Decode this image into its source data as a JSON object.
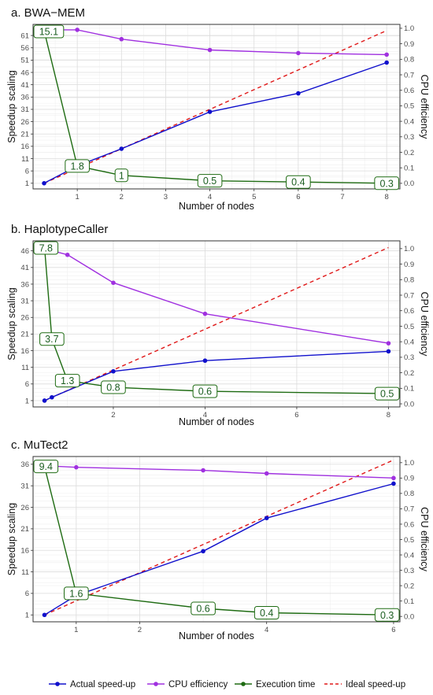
{
  "legend": [
    {
      "label": "Actual speed-up",
      "color": "#1010cc",
      "style": "line-point"
    },
    {
      "label": "CPU efficiency",
      "color": "#a030e0",
      "style": "line-point"
    },
    {
      "label": "Execution time",
      "color": "#1e6b12",
      "style": "line-point"
    },
    {
      "label": "Ideal speed-up",
      "color": "#e01818",
      "style": "dashed"
    }
  ],
  "colors": {
    "speedup": "#1010cc",
    "efficiency": "#a030e0",
    "time": "#1e6b12",
    "ideal": "#e01818",
    "grid_major": "#dcdcdc",
    "grid_minor": "#efefef",
    "label_box_fill": "#ffffff",
    "label_box_border": "#1e6b12"
  },
  "chart_data": [
    {
      "type": "line",
      "title": "a. BWA−MEM",
      "xlabel": "Number of nodes",
      "ylabel": "Speedup scaling",
      "y2label": "CPU efficiency",
      "xlim": [
        0,
        8.3
      ],
      "ylim": [
        -1.3,
        65.5
      ],
      "y2lim": [
        -0.036,
        1.025
      ],
      "x_ticks": [
        1,
        2,
        3,
        4,
        5,
        6,
        7,
        8
      ],
      "y_ticks": [
        1,
        6,
        11,
        16,
        21,
        26,
        31,
        36,
        41,
        46,
        51,
        56,
        61
      ],
      "y2_ticks": [
        0.0,
        0.1,
        0.2,
        0.3,
        0.4,
        0.5,
        0.6,
        0.7,
        0.8,
        0.9,
        1.0
      ],
      "grid": true,
      "series": [
        {
          "name": "Actual speed-up",
          "key": "speedup",
          "axis": "left",
          "x": [
            0.25,
            1,
            2,
            4,
            6,
            8
          ],
          "y": [
            1,
            8,
            15,
            30,
            37.5,
            50
          ]
        },
        {
          "name": "CPU efficiency",
          "key": "efficiency",
          "axis": "right",
          "x": [
            0.25,
            1,
            2,
            4,
            6,
            8
          ],
          "y": [
            0.99,
            0.99,
            0.93,
            0.86,
            0.84,
            0.83
          ]
        },
        {
          "name": "Execution time",
          "key": "time",
          "axis": "left",
          "x": [
            0.25,
            1,
            2,
            4,
            6,
            8
          ],
          "y": [
            63,
            8,
            4.2,
            2,
            1.5,
            1
          ],
          "labels": [
            "15.1",
            "1.8",
            "1",
            "0.5",
            "0.4",
            "0.3"
          ]
        },
        {
          "name": "Ideal speed-up",
          "key": "ideal",
          "axis": "left",
          "x": [
            0.25,
            8
          ],
          "y": [
            1,
            63
          ]
        }
      ]
    },
    {
      "type": "line",
      "title": "b. HaplotypeCaller",
      "xlabel": "Number of nodes",
      "ylabel": "Speedup scaling",
      "y2label": "CPU efficiency",
      "xlim": [
        0.25,
        8.25
      ],
      "ylim": [
        -0.9,
        49
      ],
      "y2lim": [
        -0.02,
        1.05
      ],
      "x_ticks": [
        2,
        4,
        6,
        8
      ],
      "y_ticks": [
        1,
        6,
        11,
        16,
        21,
        26,
        31,
        36,
        41,
        46
      ],
      "y2_ticks": [
        0.0,
        0.1,
        0.2,
        0.3,
        0.4,
        0.5,
        0.6,
        0.7,
        0.8,
        0.9,
        1.0
      ],
      "grid": true,
      "series": [
        {
          "name": "Actual speed-up",
          "key": "speedup",
          "axis": "left",
          "x": [
            0.5,
            0.66,
            2,
            4,
            8
          ],
          "y": [
            1,
            2,
            9.8,
            13,
            15.8
          ]
        },
        {
          "name": "CPU efficiency",
          "key": "efficiency",
          "axis": "right",
          "x": [
            0.5,
            1,
            2,
            4,
            8
          ],
          "y": [
            1.0,
            0.96,
            0.78,
            0.58,
            0.39
          ]
        },
        {
          "name": "Execution time",
          "key": "time",
          "axis": "left",
          "x": [
            0.5,
            0.66,
            1,
            2,
            4,
            8
          ],
          "y": [
            47,
            19.5,
            7,
            5,
            3.8,
            3.1
          ],
          "labels": [
            "7.8",
            "3.7",
            "1.3",
            "0.8",
            "0.6",
            "0.5"
          ]
        },
        {
          "name": "Ideal speed-up",
          "key": "ideal",
          "axis": "left",
          "x": [
            0.5,
            8
          ],
          "y": [
            1,
            47
          ]
        }
      ]
    },
    {
      "type": "line",
      "title": "c. MuTect2",
      "xlabel": "Number of nodes",
      "ylabel": "Speedup scaling",
      "y2label": "CPU efficiency",
      "xlim": [
        0.32,
        6.1
      ],
      "ylim": [
        -0.6,
        37.8
      ],
      "y2lim": [
        -0.035,
        1.04
      ],
      "x_ticks": [
        1,
        2,
        4,
        6
      ],
      "y_ticks": [
        1,
        6,
        11,
        16,
        21,
        26,
        31,
        36
      ],
      "y2_ticks": [
        0.0,
        0.1,
        0.2,
        0.3,
        0.4,
        0.5,
        0.6,
        0.7,
        0.8,
        0.9,
        1.0
      ],
      "grid": true,
      "series": [
        {
          "name": "Actual speed-up",
          "key": "speedup",
          "axis": "left",
          "x": [
            0.5,
            1,
            3,
            4,
            6
          ],
          "y": [
            1,
            5.5,
            15.8,
            23.5,
            31.5
          ]
        },
        {
          "name": "CPU efficiency",
          "key": "efficiency",
          "axis": "right",
          "x": [
            0.5,
            1,
            3,
            4,
            6
          ],
          "y": [
            0.98,
            0.97,
            0.95,
            0.93,
            0.9
          ]
        },
        {
          "name": "Execution time",
          "key": "time",
          "axis": "left",
          "x": [
            0.5,
            1,
            3,
            4,
            6
          ],
          "y": [
            35.5,
            6,
            2.5,
            1.5,
            1
          ],
          "labels": [
            "9.4",
            "1.6",
            "0.6",
            "0.4",
            "0.3"
          ]
        },
        {
          "name": "Ideal speed-up",
          "key": "ideal",
          "axis": "left",
          "x": [
            0.5,
            6
          ],
          "y": [
            1,
            37
          ]
        }
      ]
    }
  ]
}
